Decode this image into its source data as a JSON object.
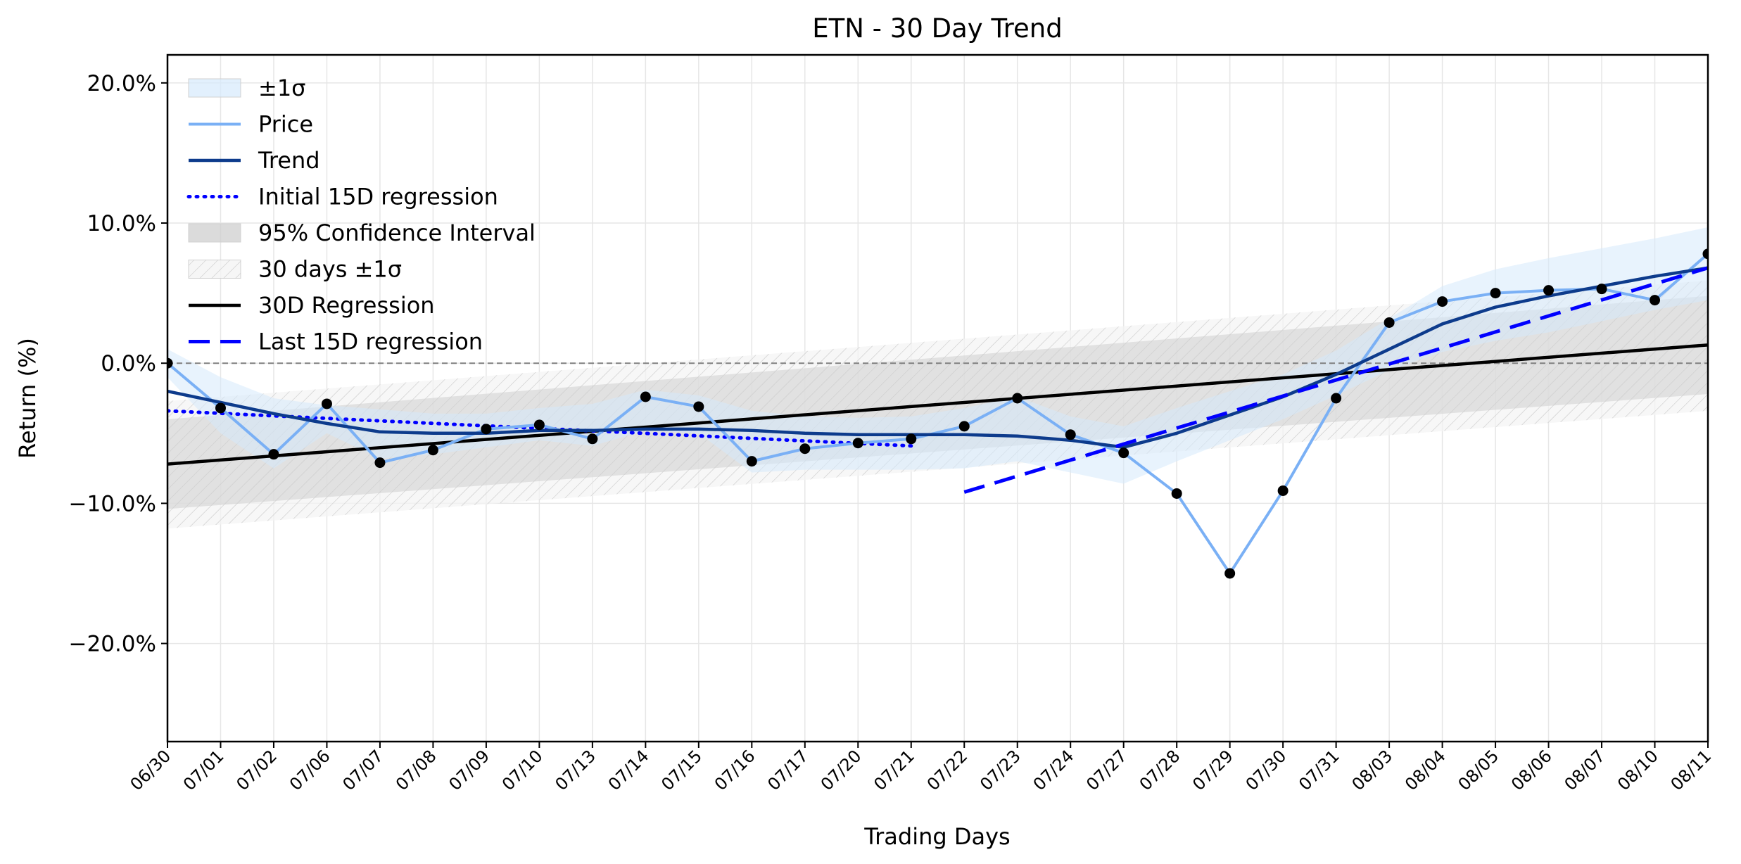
{
  "chart_data": {
    "type": "line",
    "title": "ETN - 30 Day Trend",
    "xlabel": "Trading Days",
    "ylabel": "Return (%)",
    "ylim": [
      -27,
      22
    ],
    "y_ticks": [
      20,
      10,
      0,
      -10,
      -20
    ],
    "y_tick_labels": [
      "20.0%",
      "10.0%",
      "0.0%",
      "−10.0%",
      "−20.0%"
    ],
    "grid": true,
    "legend_position": "top-left",
    "categories": [
      "06/30",
      "07/01",
      "07/02",
      "07/06",
      "07/07",
      "07/08",
      "07/09",
      "07/10",
      "07/13",
      "07/14",
      "07/15",
      "07/16",
      "07/17",
      "07/20",
      "07/21",
      "07/22",
      "07/23",
      "07/24",
      "07/27",
      "07/28",
      "07/29",
      "07/30",
      "07/31",
      "08/03",
      "08/04",
      "08/05",
      "08/06",
      "08/07",
      "08/10",
      "08/11"
    ],
    "zero_line": 0,
    "series": [
      {
        "name": "Price",
        "style": "line",
        "color": "#7ab0f5",
        "values": [
          0.0,
          -3.2,
          -6.5,
          -2.9,
          -7.1,
          -6.2,
          -4.7,
          -4.4,
          -5.4,
          -2.4,
          -3.1,
          -7.0,
          -6.1,
          -5.7,
          -5.4,
          -4.5,
          -2.5,
          -5.1,
          -6.4,
          -9.3,
          -15.0,
          -9.1,
          -2.5,
          2.9,
          4.4,
          5.0,
          5.2,
          5.3,
          4.5,
          7.8
        ]
      },
      {
        "name": "Trend",
        "style": "line",
        "color": "#0d3b8c",
        "values": [
          -2.0,
          -2.8,
          -3.6,
          -4.3,
          -4.9,
          -5.0,
          -5.0,
          -4.8,
          -4.8,
          -4.7,
          -4.7,
          -4.8,
          -5.0,
          -5.1,
          -5.1,
          -5.1,
          -5.2,
          -5.5,
          -6.0,
          -5.0,
          -3.7,
          -2.4,
          -0.8,
          1.0,
          2.8,
          4.0,
          4.8,
          5.5,
          6.2,
          6.8
        ]
      },
      {
        "name": "Initial 15D regression",
        "style": "dotted",
        "color": "#0000ff",
        "x_range": [
          0,
          14
        ],
        "y_range": [
          -3.4,
          -5.9
        ]
      },
      {
        "name": "30D Regression",
        "style": "solid",
        "color": "#000000",
        "x_range": [
          0,
          29
        ],
        "y_range": [
          -7.2,
          1.3
        ]
      },
      {
        "name": "Last 15D regression",
        "style": "dashed",
        "color": "#0000ff",
        "x_range": [
          15,
          29
        ],
        "y_range": [
          -9.2,
          6.8
        ]
      }
    ],
    "bands": [
      {
        "name": "±1σ",
        "fill": "#d6e9fc",
        "lower": [
          -1.0,
          -5.0,
          -7.5,
          -5.0,
          -6.8,
          -6.5,
          -6.0,
          -5.5,
          -5.9,
          -4.8,
          -5.0,
          -7.8,
          -7.6,
          -7.6,
          -7.6,
          -7.5,
          -7.0,
          -7.8,
          -8.6,
          -7.0,
          -5.5,
          -4.0,
          -2.3,
          -0.5,
          0.8,
          1.6,
          2.2,
          3.0,
          3.8,
          4.5
        ],
        "upper": [
          1.0,
          -1.0,
          -2.5,
          -3.0,
          -3.3,
          -3.6,
          -3.6,
          -3.2,
          -2.9,
          -1.9,
          -2.3,
          -3.4,
          -3.8,
          -3.9,
          -3.8,
          -3.2,
          -2.4,
          -3.8,
          -4.5,
          -3.2,
          -2.0,
          -0.8,
          0.9,
          3.2,
          5.5,
          6.7,
          7.5,
          8.2,
          8.9,
          9.7
        ]
      },
      {
        "name": "95% Confidence Interval",
        "fill": "#cccccc",
        "x_range": [
          0,
          29
        ],
        "lower_range": [
          -10.4,
          -2.2
        ],
        "upper_range": [
          -4.0,
          4.8
        ]
      },
      {
        "name": "30 days ±1σ",
        "fill": "#f4f4f4",
        "hatch": true,
        "x_range": [
          0,
          29
        ],
        "lower_range": [
          -11.8,
          -3.4
        ],
        "upper_range": [
          -2.7,
          5.9
        ]
      }
    ],
    "legend": [
      "±1σ",
      "Price",
      "Trend",
      "Initial 15D regression",
      "95% Confidence Interval",
      "30 days ±1σ",
      "30D Regression",
      "Last 15D regression"
    ]
  }
}
